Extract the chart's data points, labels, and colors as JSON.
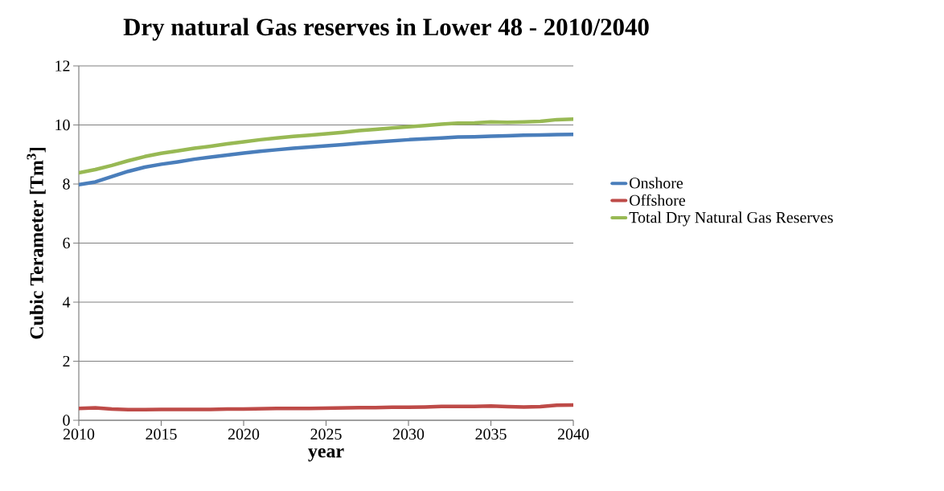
{
  "chart_data": {
    "type": "line",
    "title": "Dry natural Gas reserves  in Lower 48 - 2010/2040",
    "xlabel": "year",
    "ylabel": "Cubic Terameter [Tm$^{3}$]",
    "x": [
      2010,
      2011,
      2012,
      2013,
      2014,
      2015,
      2016,
      2017,
      2018,
      2019,
      2020,
      2021,
      2022,
      2023,
      2024,
      2025,
      2026,
      2027,
      2028,
      2029,
      2030,
      2031,
      2032,
      2033,
      2034,
      2035,
      2036,
      2037,
      2038,
      2039,
      2040
    ],
    "series": [
      {
        "name": "Onshore",
        "color": "#4a7ebb",
        "values": [
          7.98,
          8.07,
          8.25,
          8.43,
          8.57,
          8.67,
          8.75,
          8.84,
          8.91,
          8.98,
          9.05,
          9.11,
          9.16,
          9.21,
          9.25,
          9.29,
          9.33,
          9.38,
          9.42,
          9.46,
          9.5,
          9.53,
          9.56,
          9.59,
          9.6,
          9.62,
          9.63,
          9.65,
          9.66,
          9.67,
          9.68
        ]
      },
      {
        "name": "Offshore",
        "color": "#be4b48",
        "values": [
          0.4,
          0.42,
          0.38,
          0.36,
          0.36,
          0.37,
          0.37,
          0.37,
          0.37,
          0.38,
          0.38,
          0.39,
          0.4,
          0.4,
          0.4,
          0.41,
          0.42,
          0.43,
          0.43,
          0.44,
          0.44,
          0.45,
          0.47,
          0.47,
          0.47,
          0.48,
          0.46,
          0.45,
          0.46,
          0.51,
          0.52
        ]
      },
      {
        "name": "Total Dry Natural Gas Reserves",
        "color": "#98b954",
        "values": [
          8.38,
          8.49,
          8.63,
          8.79,
          8.93,
          9.04,
          9.12,
          9.21,
          9.28,
          9.36,
          9.43,
          9.5,
          9.56,
          9.61,
          9.65,
          9.7,
          9.75,
          9.81,
          9.85,
          9.9,
          9.94,
          9.98,
          10.03,
          10.06,
          10.07,
          10.1,
          10.09,
          10.1,
          10.12,
          10.18,
          10.2
        ]
      }
    ],
    "xlim": [
      2010,
      2040
    ],
    "xticks": [
      2010,
      2015,
      2020,
      2025,
      2030,
      2035,
      2040
    ],
    "ylim": [
      0,
      12
    ],
    "yticks": [
      0,
      2,
      4,
      6,
      8,
      10,
      12
    ],
    "grid": "y",
    "legend": "right",
    "marker": "none",
    "line_style": "solid"
  }
}
